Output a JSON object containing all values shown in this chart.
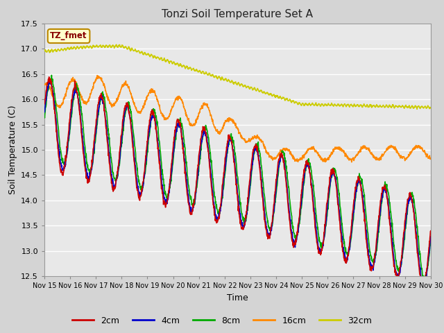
{
  "title": "Tonzi Soil Temperature Set A",
  "xlabel": "Time",
  "ylabel": "Soil Temperature (C)",
  "ylim": [
    12.5,
    17.5
  ],
  "xlim": [
    0,
    15
  ],
  "fig_bg": "#d4d4d4",
  "plot_bg": "#e8e8e8",
  "grid_color": "#ffffff",
  "annotation_text": "TZ_fmet",
  "annotation_bg": "#ffffcc",
  "annotation_border": "#bb8800",
  "annotation_text_color": "#880000",
  "series": {
    "2cm": {
      "color": "#cc0000",
      "linewidth": 1.2
    },
    "4cm": {
      "color": "#0000cc",
      "linewidth": 1.2
    },
    "8cm": {
      "color": "#00aa00",
      "linewidth": 1.2
    },
    "16cm": {
      "color": "#ff8800",
      "linewidth": 1.2
    },
    "32cm": {
      "color": "#cccc00",
      "linewidth": 1.2
    }
  },
  "xtick_labels": [
    "Nov 15",
    "Nov 16",
    "Nov 17",
    "Nov 18",
    "Nov 19",
    "Nov 20",
    "Nov 21",
    "Nov 22",
    "Nov 23",
    "Nov 24",
    "Nov 25",
    "Nov 26",
    "Nov 27",
    "Nov 28",
    "Nov 29",
    "Nov 30"
  ],
  "xtick_positions": [
    0,
    1,
    2,
    3,
    4,
    5,
    6,
    7,
    8,
    9,
    10,
    11,
    12,
    13,
    14,
    15
  ],
  "ytick_labels": [
    "12.5",
    "13.0",
    "13.5",
    "14.0",
    "14.5",
    "15.0",
    "15.5",
    "16.0",
    "16.5",
    "17.0",
    "17.5"
  ],
  "ytick_positions": [
    12.5,
    13.0,
    13.5,
    14.0,
    14.5,
    15.0,
    15.5,
    16.0,
    16.5,
    17.0,
    17.5
  ],
  "legend_entries": [
    "2cm",
    "4cm",
    "8cm",
    "16cm",
    "32cm"
  ],
  "legend_colors": [
    "#cc0000",
    "#0000cc",
    "#00aa00",
    "#ff8800",
    "#cccc00"
  ]
}
